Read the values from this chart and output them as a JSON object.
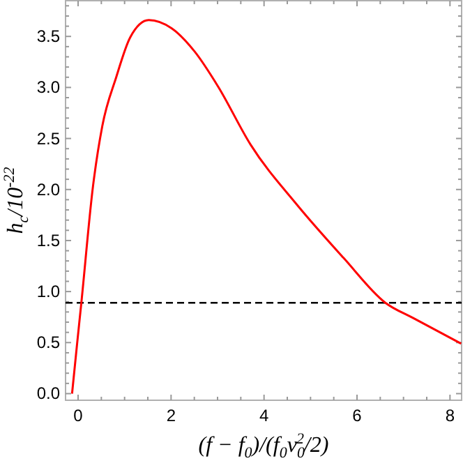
{
  "chart_data": {
    "type": "line",
    "xlabel": "(f − f$_{0}$)/(f$_{0}$v$_{0}$$^{2}$/2)",
    "ylabel": "h$_{c}$/10$^{-22}$",
    "xlim": [
      -0.27,
      8.25
    ],
    "ylim": [
      -0.065,
      3.85
    ],
    "xticks": [
      0,
      {
        "value": 0.5,
        "label": null
      },
      {
        "value": 1,
        "label": null
      },
      {
        "value": 1.5,
        "label": null
      },
      2,
      {
        "value": 2.5,
        "label": null
      },
      {
        "value": 3,
        "label": null
      },
      {
        "value": 3.5,
        "label": null
      },
      4,
      {
        "value": 4.5,
        "label": null
      },
      {
        "value": 5,
        "label": null
      },
      {
        "value": 5.5,
        "label": null
      },
      6,
      {
        "value": 6.5,
        "label": null
      },
      {
        "value": 7,
        "label": null
      },
      {
        "value": 7.5,
        "label": null
      },
      8
    ],
    "yticks": [
      {
        "value": 0,
        "label": "0.0"
      },
      {
        "value": 0.1,
        "label": null
      },
      {
        "value": 0.2,
        "label": null
      },
      {
        "value": 0.3,
        "label": null
      },
      {
        "value": 0.4,
        "label": null
      },
      {
        "value": 0.5,
        "label": "0.5"
      },
      {
        "value": 0.6,
        "label": null
      },
      {
        "value": 0.7,
        "label": null
      },
      {
        "value": 0.8,
        "label": null
      },
      {
        "value": 0.9,
        "label": null
      },
      {
        "value": 1,
        "label": "1.0"
      },
      {
        "value": 1.1,
        "label": null
      },
      {
        "value": 1.2,
        "label": null
      },
      {
        "value": 1.3,
        "label": null
      },
      {
        "value": 1.4,
        "label": null
      },
      {
        "value": 1.5,
        "label": "1.5"
      },
      {
        "value": 1.6,
        "label": null
      },
      {
        "value": 1.7,
        "label": null
      },
      {
        "value": 1.8,
        "label": null
      },
      {
        "value": 1.9,
        "label": null
      },
      {
        "value": 2,
        "label": "2.0"
      },
      {
        "value": 2.1,
        "label": null
      },
      {
        "value": 2.2,
        "label": null
      },
      {
        "value": 2.3,
        "label": null
      },
      {
        "value": 2.4,
        "label": null
      },
      {
        "value": 2.5,
        "label": "2.5"
      },
      {
        "value": 2.6,
        "label": null
      },
      {
        "value": 2.7,
        "label": null
      },
      {
        "value": 2.8,
        "label": null
      },
      {
        "value": 2.9,
        "label": null
      },
      {
        "value": 3,
        "label": "3.0"
      },
      {
        "value": 3.1,
        "label": null
      },
      {
        "value": 3.2,
        "label": null
      },
      {
        "value": 3.3,
        "label": null
      },
      {
        "value": 3.4,
        "label": null
      },
      {
        "value": 3.5,
        "label": "3.5"
      },
      {
        "value": 3.6,
        "label": null
      },
      {
        "value": 3.7,
        "label": null
      },
      {
        "value": 3.8,
        "label": null
      }
    ],
    "grid": false,
    "series": [
      {
        "color": "#ff0000",
        "line_style": "solid",
        "x": [
          -0.13,
          -0.03,
          0.07,
          0.32,
          0.52,
          0.82,
          1.12,
          1.52,
          2.01,
          2.51,
          3.01,
          3.71,
          4.71,
          5.71,
          6.61,
          7.21,
          8.24
        ],
        "values": [
          0,
          0.45,
          0.89,
          2.03,
          2.62,
          3.1,
          3.49,
          3.66,
          3.58,
          3.35,
          3.01,
          2.44,
          1.85,
          1.33,
          0.89,
          0.74,
          0.49
        ]
      }
    ],
    "ref_lines": [
      {
        "axis": "y",
        "value": 0.89,
        "color": "#000000",
        "line_style": "dashed"
      }
    ]
  }
}
